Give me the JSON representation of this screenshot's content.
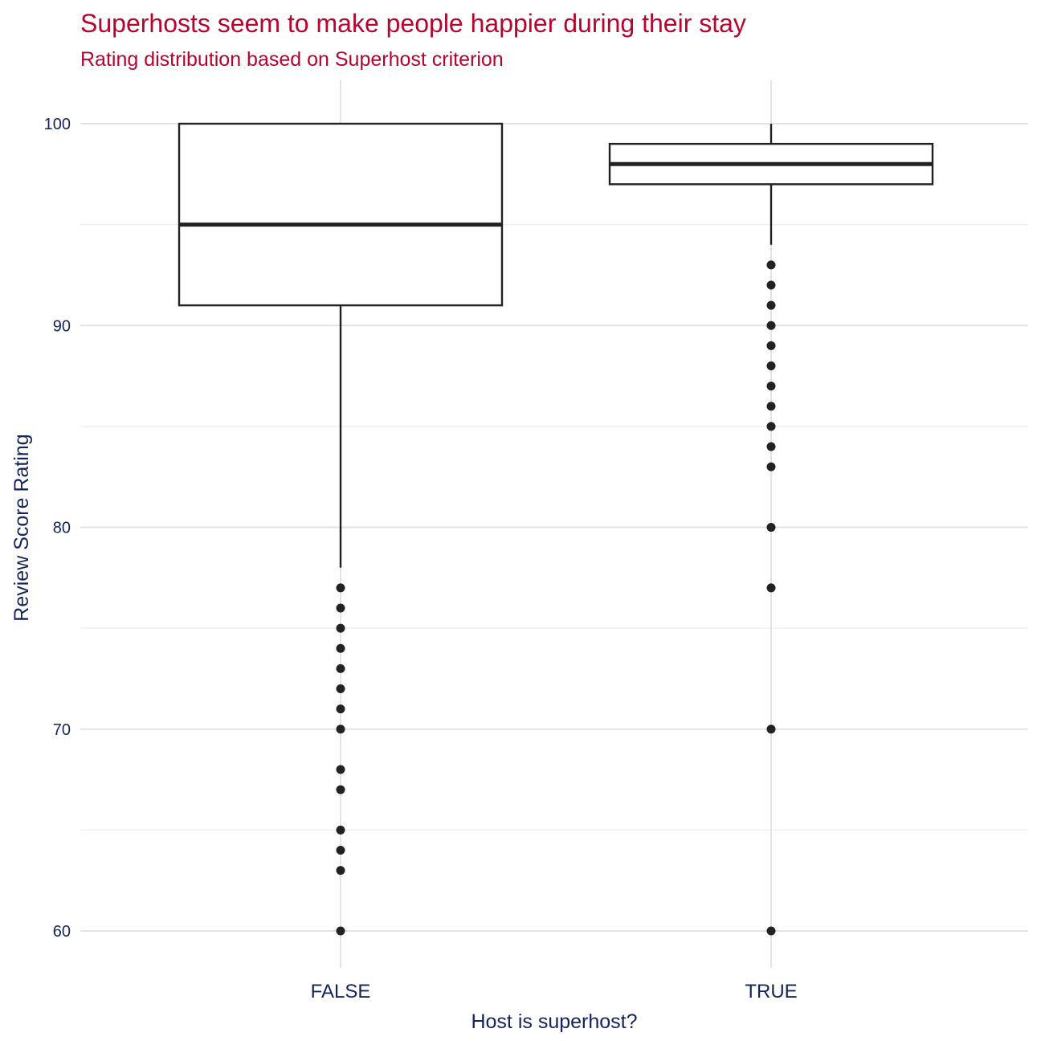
{
  "chart_data": {
    "type": "boxplot",
    "title": "Superhosts seem to make people happier during their stay",
    "subtitle": "Rating distribution based on Superhost criterion",
    "xlabel": "Host is superhost?",
    "ylabel": "Review Score Rating",
    "ylim": [
      58,
      102
    ],
    "yticks": [
      60,
      70,
      80,
      90,
      100
    ],
    "yticks_minor": [
      65,
      75,
      85,
      95
    ],
    "grid": true,
    "colors": {
      "title": "#B5052F",
      "axis_text": "#14235a",
      "marks": "#222222",
      "grid": "#e3e3e3"
    },
    "categories": [
      "FALSE",
      "TRUE"
    ],
    "boxes": [
      {
        "category": "FALSE",
        "whisker_low": 78,
        "q1": 91,
        "median": 95,
        "q3": 100,
        "whisker_high": 100,
        "outliers": [
          77,
          76,
          75,
          74,
          73,
          72,
          71,
          70,
          68,
          67,
          65,
          64,
          63,
          60
        ]
      },
      {
        "category": "TRUE",
        "whisker_low": 94,
        "q1": 97,
        "median": 98,
        "q3": 99,
        "whisker_high": 100,
        "outliers": [
          93,
          92,
          91,
          90,
          89,
          88,
          87,
          86,
          85,
          84,
          83,
          80,
          77,
          70,
          60
        ]
      }
    ]
  }
}
